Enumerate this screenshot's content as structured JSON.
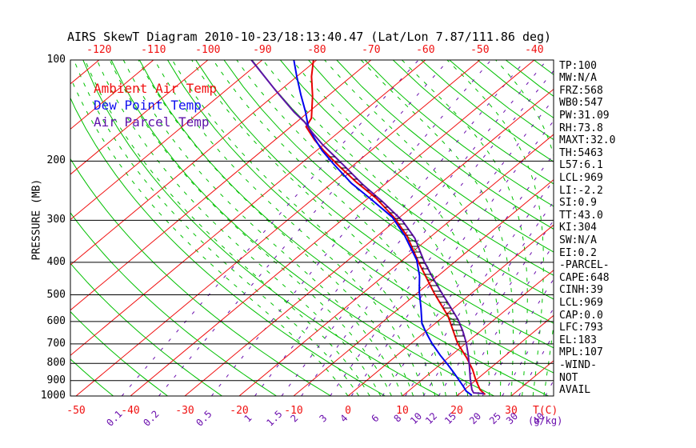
{
  "title": "AIRS SkewT Diagram 2010-10-23/18:13:40.47 (Lat/Lon 7.87/111.86 deg)",
  "legend": {
    "items": [
      {
        "label": "Ambient Air Temp",
        "color": "#f01010"
      },
      {
        "label": "Dew Point Temp",
        "color": "#1010ee"
      },
      {
        "label": "Air Parcel Temp",
        "color": "#5e12a8"
      }
    ]
  },
  "colors": {
    "ambient": "#e80000",
    "dewpoint": "#0000ee",
    "parcel": "#5e12a8",
    "grid_red": "#f01010",
    "grid_green": "#00c000",
    "mixing_purple": "#6a0dad",
    "axis_black": "#000000",
    "hatch": "#000000"
  },
  "axes": {
    "top_temp_ticks": [
      -120,
      -110,
      -100,
      -90,
      -80,
      -70,
      -60,
      -50,
      -40
    ],
    "bottom_temp_ticks": [
      -50,
      -40,
      -30,
      -20,
      -10,
      0,
      10,
      20,
      30
    ],
    "temp_axis_label": "T(C)",
    "pressure_ticks": [
      100,
      200,
      300,
      400,
      500,
      600,
      700,
      800,
      900,
      1000
    ],
    "pressure_axis_label": "PRESSURE (MB)",
    "mixing_ratio_ticks": [
      0.1,
      0.2,
      0.5,
      1,
      1.5,
      2,
      3,
      4,
      6,
      8,
      10,
      12,
      15,
      20,
      25,
      30,
      40
    ],
    "mixing_ratio_axis_label": "(g/kg)"
  },
  "stats_panel": [
    "TP:100",
    "MW:N/A",
    "FRZ:568",
    "WB0:547",
    "PW:31.09",
    "RH:73.8",
    "MAXT:32.0",
    "TH:5463",
    "L57:6.1",
    "LCL:969",
    "LI:-2.2",
    "SI:0.9",
    "TT:43.0",
    "KI:304",
    "SW:N/A",
    "EI:0.2",
    "-PARCEL-",
    "CAPE:648",
    "CINH:39",
    "LCL:969",
    "CAP:0.0",
    "LFC:793",
    "EL:183",
    "MPL:107",
    "-WIND-",
    "NOT",
    "AVAIL"
  ],
  "chart_data": {
    "type": "line",
    "variant": "skew-t-log-p",
    "title": "AIRS SkewT Diagram 2010-10-23/18:13:40.47 (Lat/Lon 7.87/111.86 deg)",
    "xlabel": "T(C)",
    "ylabel": "PRESSURE (MB)",
    "pressure_range_mb": [
      100,
      1000
    ],
    "grid": {
      "isobars_mb": [
        100,
        200,
        300,
        400,
        500,
        600,
        700,
        800,
        900,
        1000
      ],
      "isotherms_c": [
        -120,
        -110,
        -100,
        -90,
        -80,
        -70,
        -60,
        -50,
        -40,
        -30,
        -20,
        -10,
        0,
        10,
        20,
        30
      ],
      "dry_adiabats_theta_k": [
        220,
        230,
        240,
        250,
        260,
        270,
        280,
        290,
        300,
        310,
        320,
        330,
        340,
        350,
        360,
        370,
        380,
        390,
        400,
        410,
        420,
        430,
        440,
        450,
        460
      ],
      "moist_adiabats_thetaw_c": [
        0,
        2,
        4,
        6,
        8,
        10,
        12,
        14,
        16,
        18,
        20,
        22,
        24,
        26,
        28,
        30,
        32,
        34,
        36
      ],
      "mixing_ratio_g_kg": [
        0.1,
        0.2,
        0.5,
        1,
        1.5,
        2,
        3,
        4,
        6,
        8,
        10,
        12,
        15,
        20,
        25,
        30,
        40
      ]
    },
    "hatch_between": {
      "series_a": "Air Parcel Temp",
      "series_b": "Ambient Air Temp",
      "pressure_top_mb": 192,
      "pressure_bottom_mb": 700
    },
    "series": [
      {
        "name": "Ambient Air Temp",
        "color_key": "ambient",
        "points_p_t": [
          [
            100,
            -80.6
          ],
          [
            112,
            -77.3
          ],
          [
            128,
            -72.8
          ],
          [
            149,
            -68.1
          ],
          [
            158,
            -67.2
          ],
          [
            173,
            -62.7
          ],
          [
            186,
            -58.7
          ],
          [
            204,
            -53.3
          ],
          [
            231,
            -45.7
          ],
          [
            258,
            -38.5
          ],
          [
            294,
            -31.0
          ],
          [
            334,
            -24.5
          ],
          [
            398,
            -16.8
          ],
          [
            495,
            -6.8
          ],
          [
            578,
            0.7
          ],
          [
            697,
            8.5
          ],
          [
            770,
            13.4
          ],
          [
            835,
            17.1
          ],
          [
            897,
            20.0
          ],
          [
            958,
            22.9
          ],
          [
            990,
            24.9
          ]
        ]
      },
      {
        "name": "Dew Point Temp",
        "color_key": "dewpoint",
        "points_p_t": [
          [
            100,
            -84.2
          ],
          [
            112,
            -80.0
          ],
          [
            127,
            -75.2
          ],
          [
            143,
            -70.5
          ],
          [
            158,
            -66.8
          ],
          [
            170,
            -63.4
          ],
          [
            186,
            -59.0
          ],
          [
            204,
            -53.9
          ],
          [
            233,
            -46.3
          ],
          [
            261,
            -38.9
          ],
          [
            294,
            -31.3
          ],
          [
            334,
            -24.9
          ],
          [
            394,
            -17.4
          ],
          [
            439,
            -13.4
          ],
          [
            490,
            -9.9
          ],
          [
            546,
            -6.1
          ],
          [
            609,
            -2.4
          ],
          [
            654,
            0.8
          ],
          [
            697,
            3.8
          ],
          [
            757,
            8.0
          ],
          [
            808,
            11.5
          ],
          [
            854,
            14.4
          ],
          [
            897,
            16.9
          ],
          [
            937,
            19.1
          ],
          [
            968,
            20.7
          ],
          [
            995,
            22.6
          ]
        ]
      },
      {
        "name": "Air Parcel Temp",
        "color_key": "parcel",
        "points_p_t": [
          [
            100,
            -92.0
          ],
          [
            123,
            -80.9
          ],
          [
            143,
            -72.6
          ],
          [
            153,
            -68.5
          ],
          [
            165,
            -64.6
          ],
          [
            178,
            -60.4
          ],
          [
            191,
            -56.2
          ],
          [
            206,
            -51.7
          ],
          [
            234,
            -44.2
          ],
          [
            264,
            -36.6
          ],
          [
            301,
            -28.7
          ],
          [
            339,
            -22.6
          ],
          [
            398,
            -15.7
          ],
          [
            447,
            -10.3
          ],
          [
            495,
            -5.4
          ],
          [
            546,
            -0.6
          ],
          [
            593,
            3.4
          ],
          [
            640,
            6.7
          ],
          [
            693,
            9.9
          ],
          [
            752,
            12.9
          ],
          [
            817,
            15.8
          ],
          [
            887,
            18.6
          ],
          [
            958,
            21.4
          ],
          [
            979,
            22.4
          ],
          [
            984,
            24.5
          ]
        ]
      }
    ]
  }
}
